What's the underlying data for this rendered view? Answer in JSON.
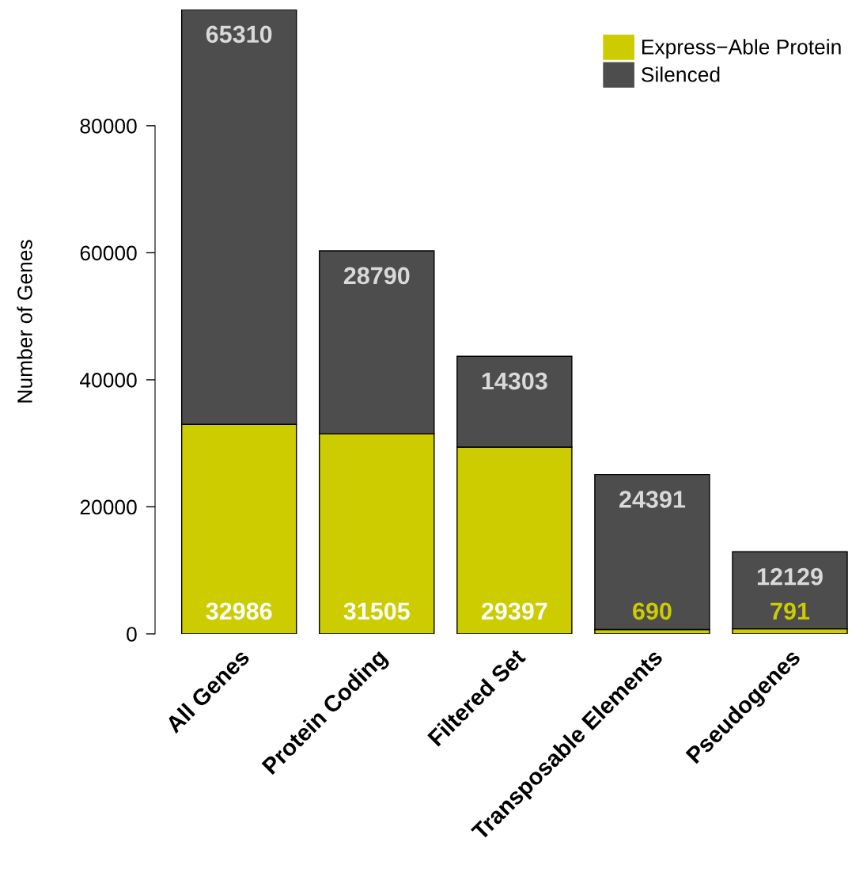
{
  "chart_data": {
    "type": "bar",
    "stacked": true,
    "ylabel": "Number of Genes",
    "categories": [
      "All Genes",
      "Protein Coding",
      "Filtered Set",
      "Transposable Elements",
      "Pseudogenes"
    ],
    "series": [
      {
        "name": "Express−Able Protein",
        "color": "#cccc00",
        "values": [
          32986,
          31505,
          29397,
          690,
          791
        ]
      },
      {
        "name": "Silenced",
        "color": "#4d4d4d",
        "values": [
          65310,
          28790,
          14303,
          24391,
          12129
        ]
      }
    ],
    "ylim": [
      0,
      98296
    ],
    "yticks": [
      0,
      20000,
      40000,
      60000,
      80000
    ],
    "data_labels": true,
    "grid": false,
    "legend": "top right"
  }
}
